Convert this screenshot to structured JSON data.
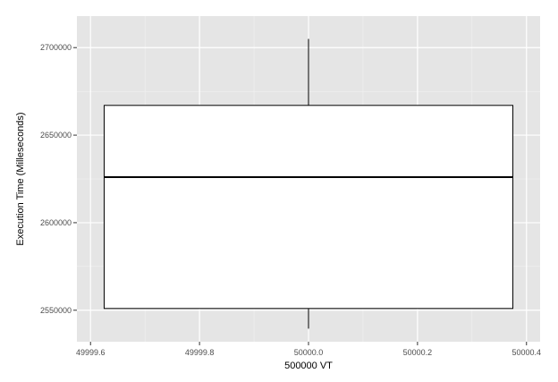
{
  "chart_data": {
    "type": "box",
    "xlabel": "500000 VT",
    "ylabel": "Execution Time (Milleseconds)",
    "x_center": 50000.0,
    "xlim": [
      49999.575,
      50000.425
    ],
    "ylim": [
      2532000,
      2718000
    ],
    "x_ticks": [
      49999.6,
      49999.8,
      50000.0,
      50000.2,
      50000.4
    ],
    "x_tick_labels": [
      "49999.6",
      "49999.8",
      "50000.0",
      "50000.2",
      "50000.4"
    ],
    "y_ticks": [
      2550000,
      2600000,
      2650000,
      2700000
    ],
    "y_tick_labels": [
      "2550000",
      "2600000",
      "2650000",
      "2700000"
    ],
    "box": {
      "x_left": 49999.625,
      "x_right": 50000.375,
      "whisker_low": 2539500,
      "q1": 2551000,
      "median": 2626000,
      "q3": 2667000,
      "whisker_high": 2705000
    },
    "grid": true,
    "colors": {
      "panel_bg": "#e5e5e5",
      "grid_major": "#ffffff",
      "grid_minor": "#f2f2f2",
      "box_fill": "#ffffff",
      "box_stroke": "#000000",
      "tick_text": "#4d4d4d"
    }
  }
}
